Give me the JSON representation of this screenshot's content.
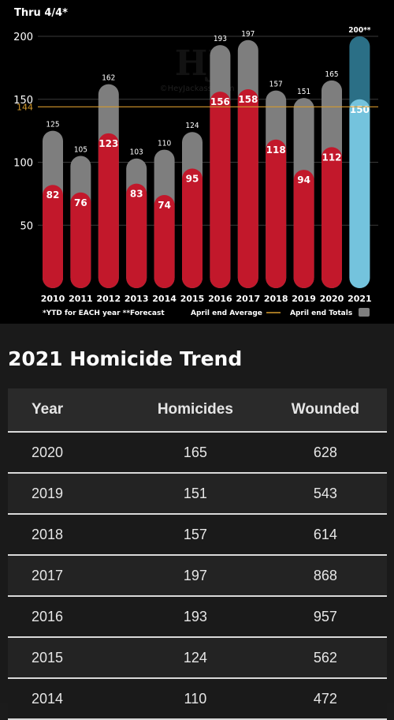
{
  "chart_data": {
    "type": "bar",
    "title": "Thru 4/4*",
    "categories": [
      "2010",
      "2011",
      "2012",
      "2013",
      "2014",
      "2015",
      "2016",
      "2017",
      "2018",
      "2019",
      "2020",
      "2021"
    ],
    "series": [
      {
        "name": "April end Totals",
        "values": [
          125,
          105,
          162,
          103,
          110,
          124,
          193,
          197,
          157,
          151,
          165,
          200
        ],
        "labels": [
          "125",
          "105",
          "162",
          "103",
          "110",
          "124",
          "193",
          "197",
          "157",
          "151",
          "165",
          "200**"
        ]
      },
      {
        "values": [
          82,
          76,
          123,
          83,
          74,
          95,
          156,
          158,
          118,
          94,
          112,
          150
        ]
      }
    ],
    "ylim": [
      0,
      200
    ],
    "yticks": [
      50,
      100,
      150,
      200
    ],
    "reference_line": {
      "name": "April end Average",
      "value": 144,
      "label": "144"
    },
    "footnote": "*YTD for EACH year **Forecast",
    "legend_line_label": "April end Average",
    "legend_box_label": "April end Totals",
    "watermark": "HJ ©HeyJackass!.com",
    "colors": {
      "total_bar": "#7e7e7e",
      "ytd_bar": "#c2182b",
      "forecast_total": "#2b6f86",
      "forecast_ytd": "#74c3dd",
      "average_line": "#d59a2c"
    }
  },
  "section": {
    "title": "2021 Homicide Trend"
  },
  "table": {
    "headers": [
      "Year",
      "Homicides",
      "Wounded"
    ],
    "rows": [
      [
        "2020",
        "165",
        "628"
      ],
      [
        "2019",
        "151",
        "543"
      ],
      [
        "2018",
        "157",
        "614"
      ],
      [
        "2017",
        "197",
        "868"
      ],
      [
        "2016",
        "193",
        "957"
      ],
      [
        "2015",
        "124",
        "562"
      ],
      [
        "2014",
        "110",
        "472"
      ]
    ]
  }
}
